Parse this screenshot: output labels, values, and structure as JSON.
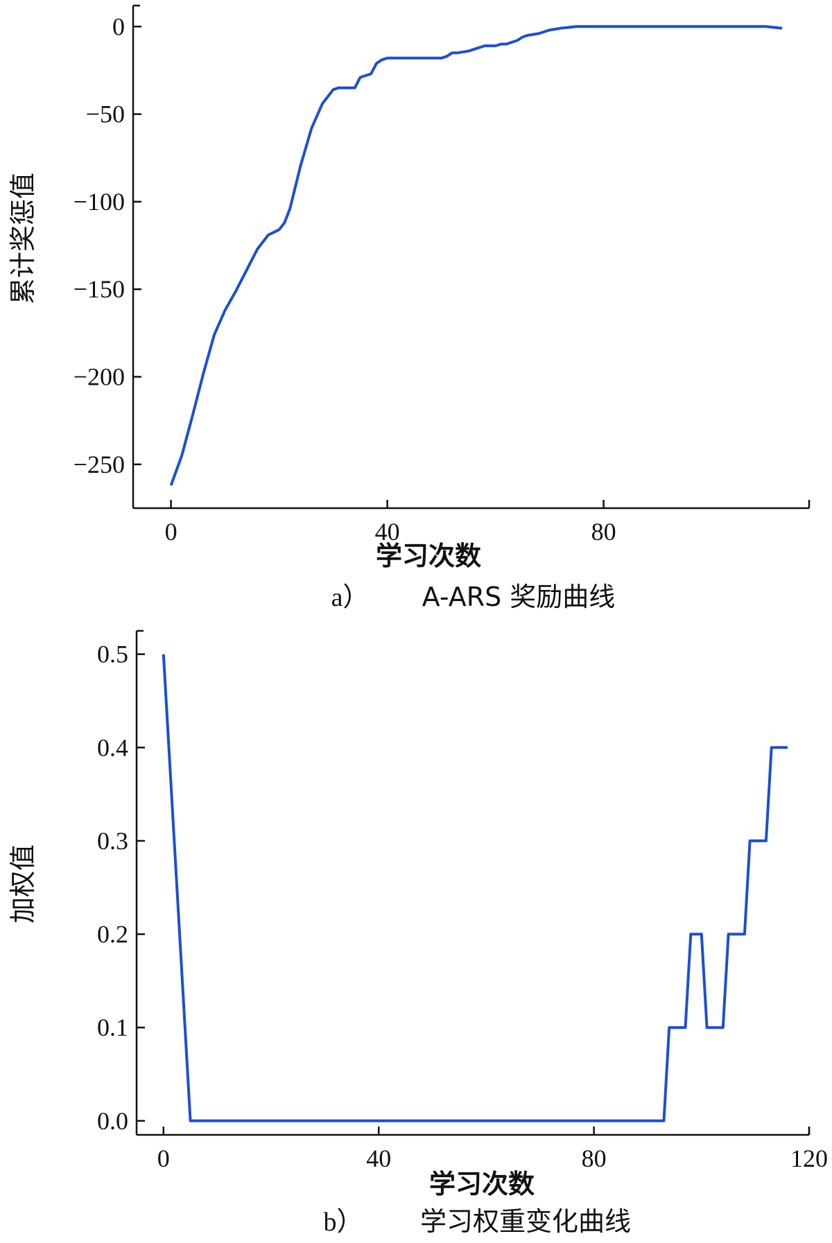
{
  "chart_data": [
    {
      "type": "line",
      "caption_id": "a）",
      "caption": "A-ARS 奖励曲线",
      "xlabel": "学习次数",
      "ylabel": "累计奖惩值",
      "xlim": [
        -7,
        118
      ],
      "ylim": [
        -275,
        12
      ],
      "xticks": [
        0,
        40,
        80
      ],
      "yticks": [
        0,
        -50,
        -100,
        -150,
        -200,
        -250
      ],
      "line_color": "#1a4fd6",
      "series": [
        {
          "x": [
            0,
            2,
            4,
            6,
            8,
            10,
            12,
            14,
            16,
            18,
            20,
            21,
            22,
            24,
            26,
            28,
            30,
            31,
            34,
            35,
            36,
            37,
            38,
            39,
            40,
            45,
            50,
            51,
            52,
            53,
            55,
            56,
            58,
            60,
            61,
            62,
            63,
            64,
            65,
            66,
            68,
            70,
            72,
            75,
            80,
            85,
            90,
            95,
            100,
            105,
            110,
            113
          ],
          "y": [
            -262,
            -245,
            -222,
            -198,
            -176,
            -162,
            -151,
            -139,
            -127,
            -119,
            -116,
            -112,
            -104,
            -79,
            -58,
            -44,
            -36,
            -35,
            -35,
            -29,
            -28,
            -27,
            -21,
            -19,
            -18,
            -18,
            -18,
            -17,
            -15,
            -15,
            -14,
            -13,
            -11,
            -11,
            -10,
            -10,
            -9,
            -8,
            -6,
            -5,
            -4,
            -2,
            -1,
            0,
            0,
            0,
            0,
            0,
            0,
            0,
            0,
            -1
          ]
        }
      ]
    },
    {
      "type": "line",
      "caption_id": "b）",
      "caption": "学习权重变化曲线",
      "xlabel": "学习次数",
      "ylabel": "加权值",
      "xlim": [
        -5,
        120
      ],
      "ylim": [
        -0.015,
        0.525
      ],
      "xticks": [
        0,
        40,
        80,
        120
      ],
      "yticks": [
        "0.5",
        "0.4",
        "0.3",
        "0.2",
        "0.1",
        "0.0"
      ],
      "line_color": "#1a4fd6",
      "series": [
        {
          "x": [
            0,
            5,
            93,
            94,
            97,
            98,
            100,
            101,
            104,
            105,
            108,
            109,
            112,
            113,
            116
          ],
          "y": [
            0.5,
            0,
            0,
            0.1,
            0.1,
            0.2,
            0.2,
            0.1,
            0.1,
            0.2,
            0.2,
            0.3,
            0.3,
            0.4,
            0.4
          ]
        }
      ]
    }
  ]
}
